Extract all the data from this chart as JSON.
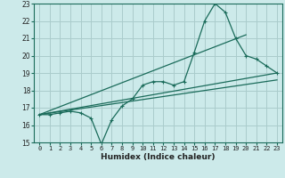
{
  "title": "",
  "xlabel": "Humidex (Indice chaleur)",
  "xlim": [
    -0.5,
    23.5
  ],
  "ylim": [
    15,
    23
  ],
  "xticks": [
    0,
    1,
    2,
    3,
    4,
    5,
    6,
    7,
    8,
    9,
    10,
    11,
    12,
    13,
    14,
    15,
    16,
    17,
    18,
    19,
    20,
    21,
    22,
    23
  ],
  "yticks": [
    15,
    16,
    17,
    18,
    19,
    20,
    21,
    22,
    23
  ],
  "bg_color": "#cceaea",
  "grid_color": "#aacccc",
  "line_color": "#1a6b5a",
  "main_line_x": [
    0,
    1,
    2,
    3,
    4,
    5,
    6,
    7,
    8,
    9,
    10,
    11,
    12,
    13,
    14,
    15,
    16,
    17,
    18,
    19,
    20,
    21,
    22,
    23
  ],
  "main_line_y": [
    16.6,
    16.6,
    16.7,
    16.8,
    16.7,
    16.4,
    14.9,
    16.3,
    17.1,
    17.5,
    18.3,
    18.5,
    18.5,
    18.3,
    18.5,
    20.2,
    22.0,
    23.0,
    22.5,
    21.0,
    20.0,
    19.8,
    19.4,
    19.0
  ],
  "trend1_x": [
    0,
    23
  ],
  "trend1_y": [
    16.6,
    19.0
  ],
  "trend2_x": [
    0,
    23
  ],
  "trend2_y": [
    16.6,
    18.6
  ],
  "trend3_x": [
    0,
    20
  ],
  "trend3_y": [
    16.6,
    21.2
  ]
}
